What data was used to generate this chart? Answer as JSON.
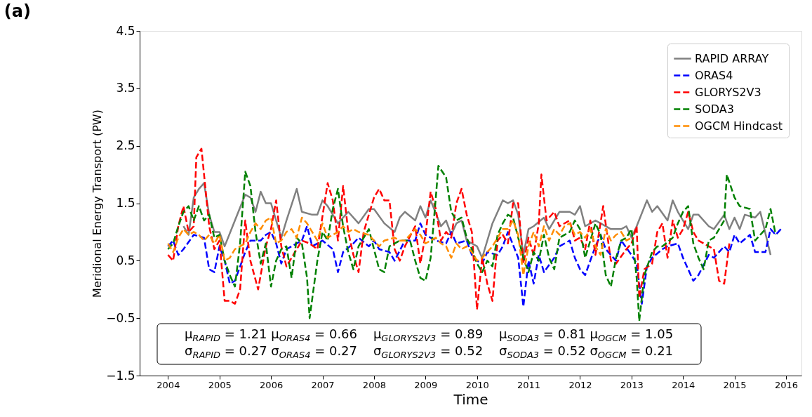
{
  "chart_data": {
    "type": "line",
    "title": "(a)",
    "xlabel": "Time",
    "ylabel": "Meridional Energy Transport (PW)",
    "xlim": [
      2003.45,
      2016.3
    ],
    "xticks": [
      2004,
      2005,
      2006,
      2007,
      2008,
      2009,
      2010,
      2011,
      2012,
      2013,
      2014,
      2015,
      2016
    ],
    "ylim": [
      -1.5,
      4.5
    ],
    "yticks": [
      -1.5,
      -0.5,
      0.5,
      1.5,
      2.5,
      3.5,
      4.5
    ],
    "grid": false,
    "legend": "top right",
    "marker": "none",
    "annotations": [
      "μ$_{RAPID}$ = 1.21 μ$_{ORAS4}$ = 0.66    μ$_{GLORYS2V3}$ = 0.89    μ$_{SODA3}$ = 0.81 μ$_{OGCM}$ = 1.05",
      "σ$_{RAPID}$ = 0.27 σ$_{ORAS4}$ = 0.27    σ$_{GLORYS2V3}$ = 0.52    σ$_{SODA3}$ = 0.52 σ$_{OGCM}$ = 0.21"
    ],
    "series": [
      {
        "name": "RAPID ARRAY",
        "color": "#808080",
        "line_style": "solid",
        "x": [
          2004.3,
          2004.4,
          2004.5,
          2004.6,
          2004.7,
          2004.8,
          2004.9,
          2005.0,
          2005.1,
          2005.3,
          2005.5,
          2005.6,
          2005.7,
          2005.8,
          2005.9,
          2006.0,
          2006.2,
          2006.3,
          2006.5,
          2006.6,
          2006.8,
          2006.9,
          2007.0,
          2007.1,
          2007.3,
          2007.5,
          2007.7,
          2007.9,
          2008.0,
          2008.2,
          2008.4,
          2008.5,
          2008.6,
          2008.8,
          2008.9,
          2009.0,
          2009.1,
          2009.3,
          2009.4,
          2009.5,
          2009.6,
          2009.7,
          2009.8,
          2009.9,
          2010.0,
          2010.1,
          2010.3,
          2010.5,
          2010.6,
          2010.7,
          2010.8,
          2010.9,
          2011.0,
          2011.1,
          2011.3,
          2011.4,
          2011.6,
          2011.8,
          2011.9,
          2012.0,
          2012.1,
          2012.3,
          2012.4,
          2012.6,
          2012.8,
          2012.9,
          2013.0,
          2013.1,
          2013.3,
          2013.4,
          2013.5,
          2013.7,
          2013.8,
          2013.9,
          2014.1,
          2014.2,
          2014.3,
          2014.5,
          2014.6,
          2014.8,
          2014.9,
          2015.0,
          2015.1,
          2015.2,
          2015.4,
          2015.5,
          2015.7
        ],
        "values": [
          1.1,
          0.95,
          1.6,
          1.75,
          1.85,
          1.3,
          1.0,
          1.0,
          0.75,
          1.2,
          1.65,
          1.6,
          1.35,
          1.7,
          1.5,
          1.5,
          0.9,
          1.2,
          1.75,
          1.35,
          1.3,
          1.3,
          1.55,
          1.45,
          1.15,
          1.35,
          1.15,
          1.4,
          1.4,
          1.15,
          1.0,
          1.25,
          1.35,
          1.2,
          1.45,
          1.25,
          1.55,
          1.1,
          1.2,
          0.95,
          1.15,
          1.2,
          0.85,
          0.8,
          0.75,
          0.55,
          1.15,
          1.55,
          1.5,
          1.55,
          1.3,
          0.6,
          1.05,
          1.1,
          1.25,
          1.05,
          1.35,
          1.35,
          1.3,
          1.45,
          1.1,
          1.2,
          1.15,
          1.05,
          1.05,
          1.1,
          0.9,
          1.1,
          1.55,
          1.35,
          1.45,
          1.2,
          1.55,
          1.35,
          1.05,
          1.3,
          1.3,
          1.1,
          1.05,
          1.3,
          1.05,
          1.25,
          1.05,
          1.3,
          1.25,
          1.35,
          0.6
        ]
      },
      {
        "name": "ORAS4",
        "color": "#0000ff",
        "line_style": "dashed",
        "x": [
          2004.0,
          2004.1,
          2004.2,
          2004.3,
          2004.5,
          2004.7,
          2004.8,
          2004.9,
          2005.0,
          2005.1,
          2005.2,
          2005.3,
          2005.5,
          2005.6,
          2005.8,
          2005.9,
          2006.0,
          2006.1,
          2006.2,
          2006.3,
          2006.4,
          2006.6,
          2006.7,
          2006.8,
          2007.0,
          2007.2,
          2007.3,
          2007.4,
          2007.6,
          2007.7,
          2007.9,
          2008.0,
          2008.1,
          2008.3,
          2008.4,
          2008.6,
          2008.8,
          2008.9,
          2009.0,
          2009.2,
          2009.4,
          2009.5,
          2009.6,
          2009.8,
          2009.9,
          2010.0,
          2010.1,
          2010.2,
          2010.4,
          2010.5,
          2010.6,
          2010.8,
          2010.9,
          2011.0,
          2011.1,
          2011.2,
          2011.3,
          2011.5,
          2011.6,
          2011.8,
          2011.9,
          2012.0,
          2012.1,
          2012.3,
          2012.4,
          2012.5,
          2012.7,
          2012.8,
          2013.0,
          2013.1,
          2013.2,
          2013.3,
          2013.4,
          2013.6,
          2013.7,
          2013.9,
          2014.0,
          2014.2,
          2014.3,
          2014.5,
          2014.6,
          2014.8,
          2014.9,
          2015.0,
          2015.1,
          2015.3,
          2015.4,
          2015.6,
          2015.7,
          2015.8,
          2015.9
        ],
        "values": [
          0.75,
          0.85,
          0.6,
          0.7,
          0.95,
          0.9,
          0.35,
          0.3,
          0.75,
          0.5,
          0.1,
          0.15,
          0.65,
          0.85,
          0.85,
          0.95,
          1.0,
          0.8,
          0.45,
          0.7,
          0.75,
          0.85,
          1.1,
          0.75,
          0.85,
          0.7,
          0.3,
          0.65,
          0.8,
          0.9,
          0.75,
          0.85,
          0.7,
          0.65,
          0.5,
          0.85,
          0.85,
          1.15,
          0.95,
          0.85,
          0.8,
          1.0,
          0.8,
          0.85,
          0.6,
          0.5,
          0.45,
          0.65,
          0.6,
          0.75,
          1.0,
          0.55,
          -0.3,
          0.5,
          0.1,
          0.6,
          0.3,
          0.55,
          0.75,
          0.85,
          0.55,
          0.35,
          0.25,
          0.75,
          0.95,
          0.7,
          0.5,
          0.85,
          0.6,
          0.45,
          -0.25,
          0.4,
          0.55,
          0.7,
          0.75,
          0.8,
          0.55,
          0.15,
          0.25,
          0.6,
          0.55,
          0.75,
          0.65,
          0.95,
          0.8,
          0.95,
          0.65,
          0.65,
          1.05,
          0.95,
          1.05
        ]
      },
      {
        "name": "GLORYS2V3",
        "color": "#ff0000",
        "line_style": "dashed",
        "x": [
          2004.0,
          2004.1,
          2004.2,
          2004.3,
          2004.4,
          2004.5,
          2004.55,
          2004.65,
          2004.8,
          2004.9,
          2005.0,
          2005.1,
          2005.2,
          2005.3,
          2005.4,
          2005.5,
          2005.6,
          2005.75,
          2005.9,
          2006.0,
          2006.1,
          2006.2,
          2006.3,
          2006.4,
          2006.6,
          2006.75,
          2006.9,
          2007.1,
          2007.2,
          2007.3,
          2007.4,
          2007.5,
          2007.6,
          2007.7,
          2007.8,
          2008.0,
          2008.1,
          2008.2,
          2008.3,
          2008.4,
          2008.5,
          2008.6,
          2008.8,
          2008.9,
          2009.0,
          2009.1,
          2009.2,
          2009.3,
          2009.4,
          2009.5,
          2009.6,
          2009.7,
          2009.8,
          2009.9,
          2010.0,
          2010.1,
          2010.2,
          2010.3,
          2010.4,
          2010.5,
          2010.6,
          2010.7,
          2010.8,
          2010.9,
          2011.0,
          2011.1,
          2011.2,
          2011.25,
          2011.35,
          2011.5,
          2011.6,
          2011.8,
          2011.9,
          2012.0,
          2012.1,
          2012.2,
          2012.3,
          2012.45,
          2012.6,
          2012.7,
          2012.9,
          2013.0,
          2013.1,
          2013.15,
          2013.25,
          2013.4,
          2013.5,
          2013.6,
          2013.7,
          2013.8,
          2013.9,
          2014.0,
          2014.1,
          2014.2,
          2014.3,
          2014.5,
          2014.6,
          2014.7,
          2014.8,
          2014.9
        ],
        "values": [
          0.6,
          0.5,
          1.1,
          1.45,
          1.0,
          1.1,
          2.3,
          2.45,
          1.1,
          0.7,
          0.85,
          -0.2,
          -0.2,
          -0.25,
          0.0,
          1.2,
          0.5,
          0.0,
          0.75,
          1.05,
          1.55,
          0.75,
          0.4,
          0.55,
          0.85,
          0.8,
          0.7,
          1.85,
          1.55,
          0.85,
          1.8,
          1.0,
          0.6,
          0.3,
          1.0,
          1.6,
          1.75,
          1.55,
          1.55,
          0.7,
          0.5,
          0.75,
          1.1,
          0.45,
          0.95,
          1.7,
          1.4,
          0.85,
          1.0,
          0.9,
          1.5,
          1.75,
          1.3,
          1.0,
          -0.35,
          0.55,
          0.1,
          -0.2,
          0.85,
          0.95,
          0.8,
          1.5,
          1.5,
          0.45,
          0.9,
          0.6,
          1.15,
          2.0,
          1.2,
          1.35,
          1.1,
          1.2,
          0.85,
          0.9,
          0.7,
          1.2,
          0.6,
          1.45,
          0.5,
          0.45,
          0.7,
          0.8,
          1.1,
          -0.15,
          0.35,
          0.45,
          1.0,
          1.15,
          0.55,
          1.2,
          0.9,
          1.05,
          1.35,
          1.0,
          0.85,
          0.75,
          0.7,
          0.15,
          0.1,
          0.8
        ]
      },
      {
        "name": "SODA3",
        "color": "#008000",
        "line_style": "dashed",
        "x": [
          2004.0,
          2004.1,
          2004.2,
          2004.3,
          2004.4,
          2004.5,
          2004.6,
          2004.7,
          2004.8,
          2004.9,
          2005.0,
          2005.1,
          2005.2,
          2005.3,
          2005.4,
          2005.5,
          2005.6,
          2005.7,
          2005.8,
          2005.9,
          2006.0,
          2006.1,
          2006.2,
          2006.3,
          2006.4,
          2006.5,
          2006.6,
          2006.7,
          2006.75,
          2006.9,
          2007.0,
          2007.1,
          2007.2,
          2007.3,
          2007.4,
          2007.5,
          2007.6,
          2007.7,
          2007.9,
          2008.0,
          2008.1,
          2008.2,
          2008.3,
          2008.5,
          2008.7,
          2008.8,
          2008.9,
          2009.0,
          2009.1,
          2009.2,
          2009.25,
          2009.4,
          2009.5,
          2009.6,
          2009.7,
          2009.8,
          2009.9,
          2010.0,
          2010.1,
          2010.2,
          2010.3,
          2010.4,
          2010.5,
          2010.6,
          2010.7,
          2010.8,
          2010.9,
          2011.0,
          2011.1,
          2011.2,
          2011.3,
          2011.4,
          2011.5,
          2011.6,
          2011.8,
          2011.9,
          2012.0,
          2012.1,
          2012.3,
          2012.4,
          2012.5,
          2012.6,
          2012.7,
          2012.8,
          2012.9,
          2013.0,
          2013.1,
          2013.15,
          2013.25,
          2013.4,
          2013.5,
          2013.6,
          2013.8,
          2013.9,
          2014.0,
          2014.1,
          2014.2,
          2014.3,
          2014.4,
          2014.5,
          2014.6,
          2014.8,
          2014.85,
          2015.0,
          2015.1,
          2015.3,
          2015.4,
          2015.6,
          2015.7,
          2015.8
        ],
        "values": [
          0.7,
          0.8,
          1.1,
          1.35,
          1.45,
          1.2,
          1.45,
          1.2,
          1.3,
          0.9,
          0.95,
          0.5,
          0.25,
          0.05,
          0.8,
          2.05,
          1.8,
          1.0,
          0.45,
          0.8,
          0.05,
          0.5,
          0.7,
          0.75,
          0.2,
          0.9,
          0.8,
          0.2,
          -0.5,
          0.5,
          1.0,
          0.85,
          1.4,
          1.75,
          1.1,
          0.65,
          0.35,
          0.75,
          1.05,
          0.7,
          0.35,
          0.3,
          0.75,
          0.85,
          0.85,
          0.5,
          0.2,
          0.15,
          0.55,
          1.6,
          2.15,
          1.95,
          1.35,
          1.2,
          1.25,
          0.9,
          0.7,
          0.45,
          0.3,
          0.5,
          0.4,
          0.95,
          1.15,
          1.3,
          1.25,
          0.9,
          0.55,
          0.3,
          0.65,
          0.5,
          0.95,
          0.55,
          0.35,
          0.9,
          1.0,
          1.2,
          1.05,
          0.55,
          1.15,
          0.95,
          0.25,
          0.05,
          0.55,
          0.85,
          0.9,
          1.05,
          0.2,
          -0.55,
          0.25,
          0.65,
          0.75,
          0.75,
          0.9,
          1.15,
          1.35,
          1.45,
          0.8,
          0.55,
          0.35,
          0.85,
          0.9,
          1.2,
          2.0,
          1.6,
          1.45,
          1.4,
          0.85,
          1.05,
          1.4,
          0.95
        ]
      },
      {
        "name": "OGCM Hindcast",
        "color": "#ff8c00",
        "line_style": "dashed",
        "x": [
          2004.0,
          2004.1,
          2004.2,
          2004.3,
          2004.4,
          2004.5,
          2004.6,
          2004.7,
          2004.8,
          2004.9,
          2005.0,
          2005.1,
          2005.2,
          2005.3,
          2005.4,
          2005.5,
          2005.6,
          2005.7,
          2005.8,
          2005.9,
          2006.0,
          2006.1,
          2006.2,
          2006.3,
          2006.4,
          2006.5,
          2006.6,
          2006.7,
          2006.8,
          2006.9,
          2007.0,
          2007.1,
          2007.2,
          2007.3,
          2007.4,
          2007.5,
          2007.6,
          2007.7,
          2007.9,
          2008.0,
          2008.1,
          2008.2,
          2008.4,
          2008.5,
          2008.6,
          2008.8,
          2008.9,
          2009.0,
          2009.1,
          2009.2,
          2009.3,
          2009.4,
          2009.5,
          2009.6,
          2009.7,
          2009.8,
          2009.9,
          2010.0,
          2010.1,
          2010.3,
          2010.4,
          2010.5,
          2010.6,
          2010.7,
          2010.8,
          2010.9,
          2011.0,
          2011.1,
          2011.2,
          2011.3,
          2011.4,
          2011.5,
          2011.6,
          2011.7,
          2011.8,
          2011.9,
          2012.0,
          2012.1,
          2012.2,
          2012.3,
          2012.4,
          2012.5,
          2012.6,
          2012.7,
          2012.8,
          2012.9,
          2013.0
        ],
        "values": [
          0.8,
          0.65,
          0.9,
          1.05,
          0.95,
          1.0,
          0.95,
          0.85,
          0.95,
          0.8,
          0.95,
          0.5,
          0.55,
          0.7,
          0.75,
          0.8,
          1.0,
          1.15,
          1.05,
          1.2,
          1.25,
          0.8,
          0.85,
          1.0,
          1.05,
          0.9,
          1.25,
          1.15,
          1.0,
          0.85,
          1.15,
          0.9,
          0.95,
          1.0,
          1.1,
          1.0,
          1.05,
          1.0,
          0.95,
          0.85,
          0.75,
          0.85,
          0.9,
          0.85,
          0.85,
          1.05,
          0.95,
          0.8,
          0.85,
          0.9,
          0.8,
          0.75,
          0.55,
          0.8,
          0.7,
          0.75,
          0.65,
          0.5,
          0.55,
          0.75,
          0.9,
          1.05,
          1.05,
          1.2,
          0.95,
          0.25,
          0.75,
          1.0,
          0.75,
          1.1,
          0.85,
          1.05,
          0.95,
          1.1,
          1.15,
          0.95,
          1.0,
          0.9,
          1.05,
          0.75,
          0.6,
          1.05,
          0.85,
          0.95,
          1.0,
          0.85,
          0.9
        ]
      }
    ]
  }
}
